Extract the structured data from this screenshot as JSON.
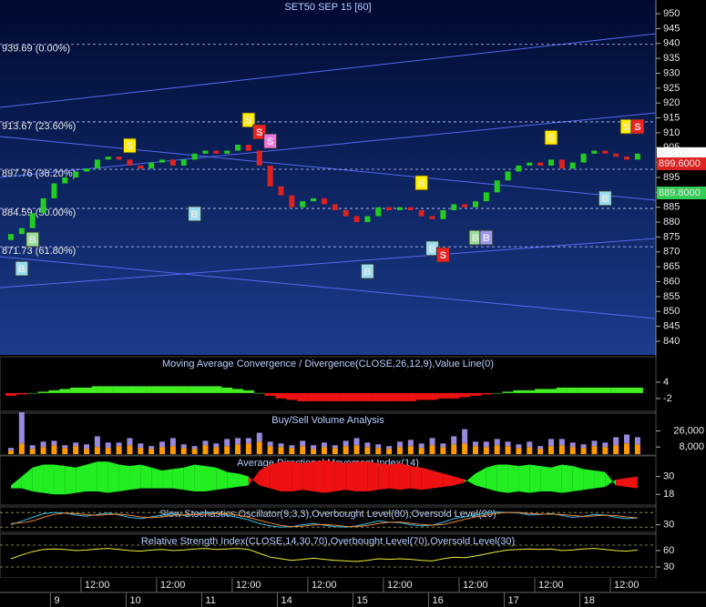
{
  "chart_data": [
    {
      "type": "candlestick",
      "title": "SET50 SEP 15   [60]",
      "open": [
        874,
        876,
        878,
        883,
        888,
        893,
        895,
        897,
        898,
        901,
        902,
        901,
        899,
        898,
        900,
        901,
        899,
        901,
        903,
        904,
        903,
        904,
        906,
        904,
        899,
        892,
        889,
        885,
        887,
        888,
        886,
        884,
        882,
        880,
        882,
        885,
        884,
        885,
        884,
        882,
        881,
        884,
        886,
        885,
        887,
        890,
        894,
        897,
        899,
        900,
        899,
        901,
        898,
        900,
        903,
        904,
        903,
        902,
        901
      ],
      "close": [
        876,
        878,
        883,
        888,
        893,
        895,
        897,
        898,
        901,
        902,
        901,
        899,
        898,
        900,
        901,
        899,
        901,
        903,
        904,
        903,
        904,
        906,
        904,
        899,
        892,
        889,
        885,
        887,
        888,
        886,
        884,
        882,
        880,
        882,
        885,
        884,
        885,
        884,
        882,
        881,
        884,
        886,
        885,
        887,
        890,
        894,
        897,
        899,
        900,
        899,
        901,
        898,
        900,
        903,
        904,
        903,
        902,
        901,
        903
      ],
      "up_color": "#22cc22",
      "down_color": "#dd2222",
      "ylim": [
        835.4,
        954.6
      ],
      "yticks": [
        840,
        845,
        850,
        855,
        860,
        865,
        870,
        875,
        880,
        885,
        890,
        895,
        900,
        905,
        910,
        915,
        920,
        925,
        930,
        935,
        940,
        945,
        950
      ],
      "levels": [
        939.69,
        913.67,
        897.76,
        884.59,
        871.73
      ],
      "level_labels": [
        "939.69 (0.00%)",
        "913.67 (23.60%)",
        "897.76 (38.20%)",
        "884.59 (50.00%)",
        "871.73 (61.80%)"
      ],
      "price_tags": {
        "values": [
          903.0,
          899.6,
          889.8
        ],
        "labels": [
          "903.00",
          "899.6000",
          "889.8000"
        ],
        "colors": [
          "#ffffff",
          "#dd2222",
          "#33cc55"
        ]
      },
      "signals": {
        "labels": [
          "B",
          "B",
          "S",
          "B",
          "S",
          "S",
          "S",
          "B",
          "S",
          "B",
          "S",
          "B",
          "B",
          "S",
          "B",
          "S",
          "S"
        ],
        "index": [
          1,
          2,
          11,
          17,
          22,
          23,
          24,
          33,
          38,
          39,
          40,
          43,
          44,
          50,
          55,
          57,
          58
        ],
        "price": [
          864.4,
          874.2,
          905.7,
          882.8,
          914.3,
          910.3,
          907.2,
          863.5,
          893.2,
          871.2,
          869.0,
          874.8,
          874.8,
          908.4,
          888.0,
          912.1,
          912.1
        ],
        "colors": [
          "#99ddee",
          "#99dd99",
          "#ffee00",
          "#99ddee",
          "#ffee00",
          "#ee2222",
          "#ee77dd",
          "#99ddee",
          "#ffee00",
          "#99ddee",
          "#ee2222",
          "#99dd99",
          "#9999ee",
          "#ffee00",
          "#99ddee",
          "#ffee00",
          "#ee2222"
        ]
      }
    },
    {
      "type": "bar",
      "title": "Moving Average Convergence / Divergence(CLOSE,26,12,9),Value Line(0)",
      "values": [
        -1,
        -0.5,
        0,
        0.5,
        1,
        1.5,
        2,
        2,
        2.5,
        2.5,
        2.5,
        2.5,
        2.5,
        2.5,
        2.5,
        2.5,
        2.5,
        2.5,
        2.5,
        2.5,
        2,
        1.5,
        1,
        0,
        -1,
        -2,
        -2.5,
        -3,
        -3,
        -3,
        -3,
        -3,
        -3,
        -3,
        -3,
        -3,
        -3,
        -3,
        -2.5,
        -2.5,
        -2,
        -2,
        -1.5,
        -1,
        -0.5,
        0,
        0.5,
        1,
        1,
        1.5,
        1.5,
        2,
        2,
        2,
        2,
        2,
        2,
        2,
        2
      ],
      "up_color": "#44ee22",
      "down_color": "#ee1111",
      "ylim": [
        -6.7,
        13.3
      ],
      "yticks": [
        4,
        -2
      ]
    },
    {
      "type": "stacked-bar",
      "title": "Buy/Sell Volume Analysis",
      "series": [
        {
          "color": "#ff9900",
          "values": [
            4000,
            12000,
            6000,
            8000,
            10000,
            7000,
            9000,
            6000,
            8000,
            7000,
            9000,
            10000,
            7000,
            6000,
            8000,
            9000,
            7000,
            6000,
            10000,
            8000,
            9000,
            11000,
            12000,
            14000,
            9000,
            8000,
            7000,
            9000,
            6000,
            8000,
            7000,
            9000,
            10000,
            8000,
            7000,
            6000,
            8000,
            9000,
            7000,
            10000,
            8000,
            11000,
            12000,
            9000,
            8000,
            10000,
            9000,
            7000,
            8000,
            6000,
            9000,
            10000,
            8000,
            7000,
            9000,
            8000,
            10000,
            12000,
            11000
          ]
        },
        {
          "color": "#9988dd",
          "values": [
            3000,
            35000,
            4000,
            6000,
            5000,
            3000,
            4000,
            5000,
            12000,
            6000,
            4000,
            8000,
            5000,
            3000,
            6000,
            9000,
            4000,
            3000,
            5000,
            4000,
            8000,
            7000,
            6000,
            10000,
            5000,
            4000,
            3000,
            6000,
            4000,
            5000,
            3000,
            6000,
            8000,
            5000,
            4000,
            3000,
            6000,
            7000,
            5000,
            8000,
            4000,
            9000,
            16000,
            5000,
            6000,
            7000,
            5000,
            4000,
            6000,
            3000,
            8000,
            7000,
            5000,
            4000,
            6000,
            5000,
            9000,
            10000,
            8000
          ]
        }
      ],
      "ylim": [
        -1000,
        46000
      ],
      "yticks": [
        {
          "value": 26000,
          "label": "26,000"
        },
        {
          "value": 8000,
          "label": "8,000"
        }
      ]
    },
    {
      "type": "di-band",
      "title": "Average Directional Movement Index(14)",
      "series": [
        {
          "color": "#22ee22",
          "values": [
            24,
            30,
            36,
            38,
            38,
            37,
            36,
            38,
            40,
            40,
            38,
            37,
            38,
            36,
            34,
            35,
            36,
            38,
            37,
            36,
            33,
            32,
            30,
            24,
            22,
            20,
            20,
            21,
            20,
            19,
            20,
            21,
            20,
            20,
            21,
            22,
            21,
            22,
            21,
            22,
            23,
            24,
            26,
            32,
            36,
            38,
            38,
            37,
            38,
            37,
            36,
            38,
            37,
            35,
            34,
            33,
            24,
            23,
            22
          ]
        },
        {
          "color": "#ee1111",
          "values": [
            22,
            22,
            20,
            19,
            18,
            18,
            19,
            20,
            20,
            19,
            20,
            21,
            22,
            22,
            22,
            22,
            21,
            20,
            20,
            21,
            22,
            23,
            24,
            34,
            38,
            40,
            40,
            39,
            40,
            41,
            40,
            39,
            40,
            40,
            39,
            38,
            39,
            37,
            36,
            34,
            32,
            30,
            28,
            24,
            22,
            20,
            19,
            20,
            19,
            20,
            20,
            19,
            20,
            21,
            22,
            23,
            28,
            29,
            30
          ]
        }
      ],
      "ylim": [
        10.8,
        43.8
      ],
      "yticks": [
        30,
        18
      ]
    },
    {
      "type": "line",
      "title": "Slow Stochastics Oscillator(9,3,3),Overbought Level(80),Oversold Level(20)",
      "series": [
        {
          "color": "#33bbee",
          "values": [
            30,
            45,
            60,
            75,
            80,
            78,
            70,
            65,
            72,
            78,
            70,
            60,
            55,
            62,
            70,
            75,
            68,
            72,
            80,
            76,
            70,
            60,
            50,
            35,
            25,
            20,
            22,
            30,
            35,
            28,
            22,
            20,
            25,
            35,
            45,
            40,
            38,
            30,
            25,
            28,
            40,
            55,
            62,
            70,
            78,
            82,
            80,
            78,
            70,
            72,
            76,
            68,
            60,
            65,
            72,
            70,
            60,
            55,
            58
          ]
        },
        {
          "color": "#ee8833",
          "values": [
            35,
            38,
            45,
            60,
            72,
            78,
            76,
            71,
            69,
            72,
            73,
            69,
            62,
            59,
            62,
            69,
            71,
            72,
            73,
            76,
            75,
            69,
            60,
            48,
            37,
            27,
            22,
            24,
            29,
            31,
            28,
            23,
            22,
            27,
            35,
            40,
            41,
            36,
            31,
            28,
            31,
            41,
            52,
            62,
            70,
            77,
            80,
            80,
            76,
            73,
            73,
            72,
            68,
            64,
            66,
            69,
            67,
            62,
            58
          ]
        }
      ],
      "levels": [
        80,
        20
      ],
      "ylim": [
        -1.4,
        103
      ],
      "yticks": [
        30
      ]
    },
    {
      "type": "line",
      "title": "Relative Strength Index(CLOSE,14,30,70),Overbought Level(70),Oversold Level(30)",
      "series": [
        {
          "color": "#eeee33",
          "values": [
            45,
            52,
            58,
            62,
            63,
            62,
            60,
            61,
            63,
            64,
            62,
            60,
            59,
            61,
            62,
            60,
            61,
            63,
            64,
            62,
            63,
            64,
            62,
            55,
            48,
            45,
            42,
            44,
            46,
            44,
            42,
            41,
            40,
            42,
            45,
            44,
            45,
            44,
            42,
            41,
            45,
            48,
            47,
            50,
            54,
            58,
            61,
            62,
            63,
            62,
            63,
            60,
            61,
            63,
            64,
            62,
            60,
            59,
            61
          ]
        }
      ],
      "levels": [
        70,
        30
      ],
      "ylim": [
        10,
        90
      ],
      "yticks": [
        60,
        30
      ],
      "categories": [
        null,
        null,
        null,
        null,
        null,
        null,
        null,
        null,
        "12:00",
        null,
        null,
        null,
        null,
        null,
        null,
        "12:00",
        null,
        null,
        null,
        null,
        null,
        null,
        "12:00",
        null,
        null,
        null,
        null,
        null,
        null,
        "12:00",
        null,
        null,
        null,
        null,
        null,
        null,
        "12:00",
        null,
        null,
        null,
        null,
        null,
        null,
        "12:00",
        null,
        null,
        null,
        null,
        null,
        null,
        "12:00",
        null,
        null,
        null,
        null,
        null,
        null,
        "12:00",
        null
      ],
      "day_labels": [
        null,
        null,
        null,
        null,
        "9",
        null,
        null,
        null,
        null,
        null,
        null,
        "10",
        null,
        null,
        null,
        null,
        null,
        null,
        "11",
        null,
        null,
        null,
        null,
        null,
        null,
        "14",
        null,
        null,
        null,
        null,
        null,
        null,
        "15",
        null,
        null,
        null,
        null,
        null,
        null,
        "16",
        null,
        null,
        null,
        null,
        null,
        null,
        "17",
        null,
        null,
        null,
        null,
        null,
        null,
        "18",
        null,
        null,
        null,
        null,
        null
      ]
    }
  ]
}
